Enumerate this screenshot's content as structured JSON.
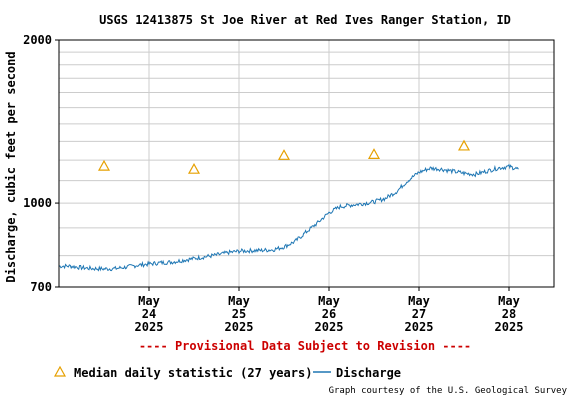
{
  "chart_data": {
    "type": "line",
    "title": "USGS 12413875 St Joe River at Red Ives Ranger Station, ID",
    "ylabel": "Discharge, cubic feet per second",
    "xlabel": "",
    "y_scale": "log",
    "ylim": [
      700,
      2000
    ],
    "y_ticks_labeled": [
      700,
      1000,
      2000
    ],
    "y_minor_gridlines": [
      800,
      900,
      1100,
      1200,
      1300,
      1400,
      1500,
      1600,
      1700,
      1800,
      1900
    ],
    "x_range_days": [
      "2025-05-23",
      "2025-05-28T12:00"
    ],
    "x_ticks": [
      {
        "date": "2025-05-24",
        "line1": "May",
        "line2": "24",
        "line3": "2025"
      },
      {
        "date": "2025-05-25",
        "line1": "May",
        "line2": "25",
        "line3": "2025"
      },
      {
        "date": "2025-05-26",
        "line1": "May",
        "line2": "26",
        "line3": "2025"
      },
      {
        "date": "2025-05-27",
        "line1": "May",
        "line2": "27",
        "line3": "2025"
      },
      {
        "date": "2025-05-28",
        "line1": "May",
        "line2": "28",
        "line3": "2025"
      }
    ],
    "grid": true,
    "series": [
      {
        "name": "Discharge",
        "kind": "line",
        "color": "#1f77b4",
        "points": [
          [
            "2025-05-23T00:00",
            765
          ],
          [
            "2025-05-23T03:00",
            765
          ],
          [
            "2025-05-23T06:00",
            760
          ],
          [
            "2025-05-23T09:00",
            757
          ],
          [
            "2025-05-23T12:00",
            756
          ],
          [
            "2025-05-23T15:00",
            757
          ],
          [
            "2025-05-23T18:00",
            762
          ],
          [
            "2025-05-23T21:00",
            768
          ],
          [
            "2025-05-24T00:00",
            772
          ],
          [
            "2025-05-24T03:00",
            776
          ],
          [
            "2025-05-24T06:00",
            778
          ],
          [
            "2025-05-24T09:00",
            784
          ],
          [
            "2025-05-24T12:00",
            790
          ],
          [
            "2025-05-24T15:00",
            796
          ],
          [
            "2025-05-24T18:00",
            802
          ],
          [
            "2025-05-24T21:00",
            810
          ],
          [
            "2025-05-25T00:00",
            815
          ],
          [
            "2025-05-25T03:00",
            817
          ],
          [
            "2025-05-25T06:00",
            818
          ],
          [
            "2025-05-25T09:00",
            820
          ],
          [
            "2025-05-25T12:00",
            830
          ],
          [
            "2025-05-25T15:00",
            850
          ],
          [
            "2025-05-25T18:00",
            885
          ],
          [
            "2025-05-25T21:00",
            920
          ],
          [
            "2025-05-26T00:00",
            960
          ],
          [
            "2025-05-26T03:00",
            985
          ],
          [
            "2025-05-26T06:00",
            992
          ],
          [
            "2025-05-26T09:00",
            998
          ],
          [
            "2025-05-26T12:00",
            1005
          ],
          [
            "2025-05-26T15:00",
            1020
          ],
          [
            "2025-05-26T18:00",
            1050
          ],
          [
            "2025-05-26T21:00",
            1100
          ],
          [
            "2025-05-27T00:00",
            1140
          ],
          [
            "2025-05-27T03:00",
            1160
          ],
          [
            "2025-05-27T06:00",
            1155
          ],
          [
            "2025-05-27T09:00",
            1145
          ],
          [
            "2025-05-27T12:00",
            1135
          ],
          [
            "2025-05-27T15:00",
            1130
          ],
          [
            "2025-05-27T18:00",
            1145
          ],
          [
            "2025-05-27T21:00",
            1160
          ],
          [
            "2025-05-28T00:00",
            1168
          ],
          [
            "2025-05-28T02:30",
            1155
          ]
        ]
      },
      {
        "name": "Median daily statistic (27 years)",
        "kind": "marker",
        "marker": "triangle",
        "color": "#e6a000",
        "points": [
          [
            "2025-05-23T12:00",
            1170
          ],
          [
            "2025-05-24T12:00",
            1155
          ],
          [
            "2025-05-25T12:00",
            1225
          ],
          [
            "2025-05-26T12:00",
            1230
          ],
          [
            "2025-05-27T12:00",
            1275
          ]
        ]
      }
    ],
    "legend": [
      {
        "label": "Median daily statistic (27 years)",
        "symbol": "triangle"
      },
      {
        "label": "Discharge",
        "symbol": "line"
      }
    ],
    "legend_position": "bottom-left"
  },
  "notice": "---- Provisional Data Subject to Revision ----",
  "credit": "Graph courtesy of the U.S. Geological Survey",
  "colors": {
    "discharge": "#1f77b4",
    "median": "#e6a000",
    "notice": "#cc0000",
    "grid": "#cccccc",
    "frame": "#000000"
  }
}
